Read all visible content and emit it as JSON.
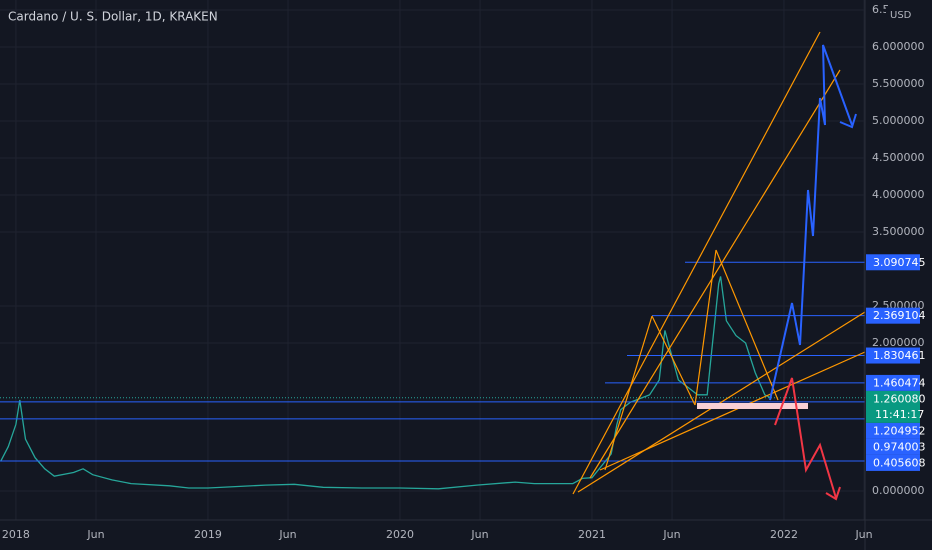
{
  "chart_data": {
    "type": "line",
    "title": "Cardano / U. S. Dollar, 1D, KRAKEN",
    "currency": "USD",
    "countdown": "11:41:17",
    "color": "#26a69a",
    "grid": true,
    "x": [
      2017.92,
      2017.96,
      2018.0,
      2018.02,
      2018.05,
      2018.1,
      2018.15,
      2018.2,
      2018.3,
      2018.35,
      2018.4,
      2018.5,
      2018.6,
      2018.8,
      2018.9,
      2019.0,
      2019.3,
      2019.45,
      2019.6,
      2019.8,
      2020.0,
      2020.2,
      2020.4,
      2020.6,
      2020.7,
      2020.9,
      2020.95,
      2021.0,
      2021.1,
      2021.13,
      2021.15,
      2021.2,
      2021.3,
      2021.35,
      2021.38,
      2021.45,
      2021.5,
      2021.55,
      2021.6,
      2021.62,
      2021.66,
      2021.67,
      2021.7,
      2021.75,
      2021.8,
      2021.85,
      2021.9,
      2021.93
    ],
    "values": [
      0.4,
      0.6,
      0.9,
      1.23,
      0.7,
      0.45,
      0.3,
      0.2,
      0.25,
      0.3,
      0.22,
      0.15,
      0.1,
      0.07,
      0.04,
      0.04,
      0.08,
      0.09,
      0.05,
      0.04,
      0.04,
      0.03,
      0.08,
      0.12,
      0.1,
      0.1,
      0.17,
      0.18,
      0.5,
      0.9,
      1.1,
      1.2,
      1.3,
      1.5,
      2.17,
      1.5,
      1.4,
      1.3,
      1.3,
      1.8,
      2.8,
      2.9,
      2.3,
      2.1,
      2.0,
      1.6,
      1.3,
      1.26
    ],
    "xlim": [
      2017.917,
      2022.422
    ],
    "xticks": [
      {
        "value": 2018,
        "label": "2018"
      },
      {
        "value": 2018.417,
        "label": "Jun"
      },
      {
        "value": 2019,
        "label": "2019"
      },
      {
        "value": 2019.417,
        "label": "Jun"
      },
      {
        "value": 2020,
        "label": "2020"
      },
      {
        "value": 2020.417,
        "label": "Jun"
      },
      {
        "value": 2021,
        "label": "2021"
      },
      {
        "value": 2021.417,
        "label": "Jun"
      },
      {
        "value": 2022,
        "label": "2022"
      },
      {
        "value": 2022.417,
        "label": "Jun"
      }
    ],
    "ylim": [
      -0.392,
      6.635
    ],
    "yticks": [
      {
        "value": 0,
        "label": "0.000000"
      },
      {
        "value": 2,
        "label": "2.000000"
      },
      {
        "value": 2.5,
        "label": "2.500000"
      },
      {
        "value": 3.5,
        "label": "3.500000"
      },
      {
        "value": 4,
        "label": "4.000000"
      },
      {
        "value": 4.5,
        "label": "4.500000"
      },
      {
        "value": 5,
        "label": "5.000000"
      },
      {
        "value": 5.5,
        "label": "5.500000"
      },
      {
        "value": 6,
        "label": "6.000000"
      },
      {
        "value": 6.5,
        "label": "6.5"
      }
    ],
    "levels": [
      3.090745,
      2.369104,
      1.830461,
      1.460474,
      {
        "value": 1.26008,
        "label": "1.260080"
      },
      1.204952,
      0.974003,
      0.405608
    ]
  }
}
